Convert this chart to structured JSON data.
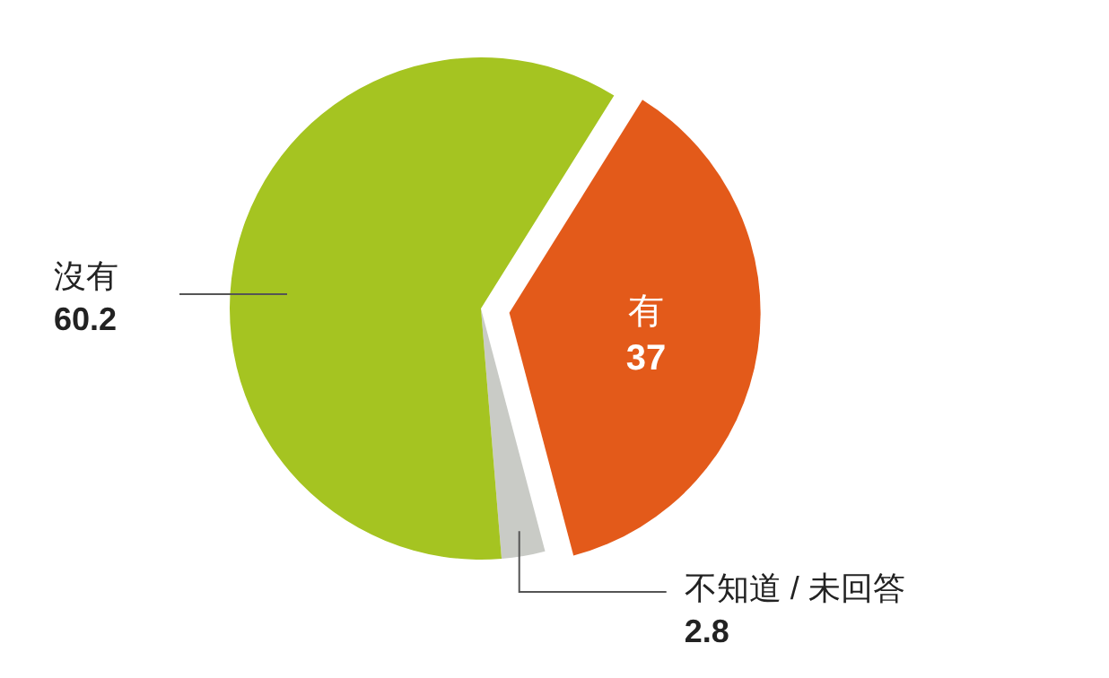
{
  "chart_data": {
    "type": "pie",
    "categories": [
      "有",
      "不知道 / 未回答",
      "沒有"
    ],
    "values": [
      37,
      2.8,
      60.2
    ],
    "colors": [
      "#e35a1a",
      "#c9cbc6",
      "#a5c421"
    ],
    "data_labels": true
  }
}
